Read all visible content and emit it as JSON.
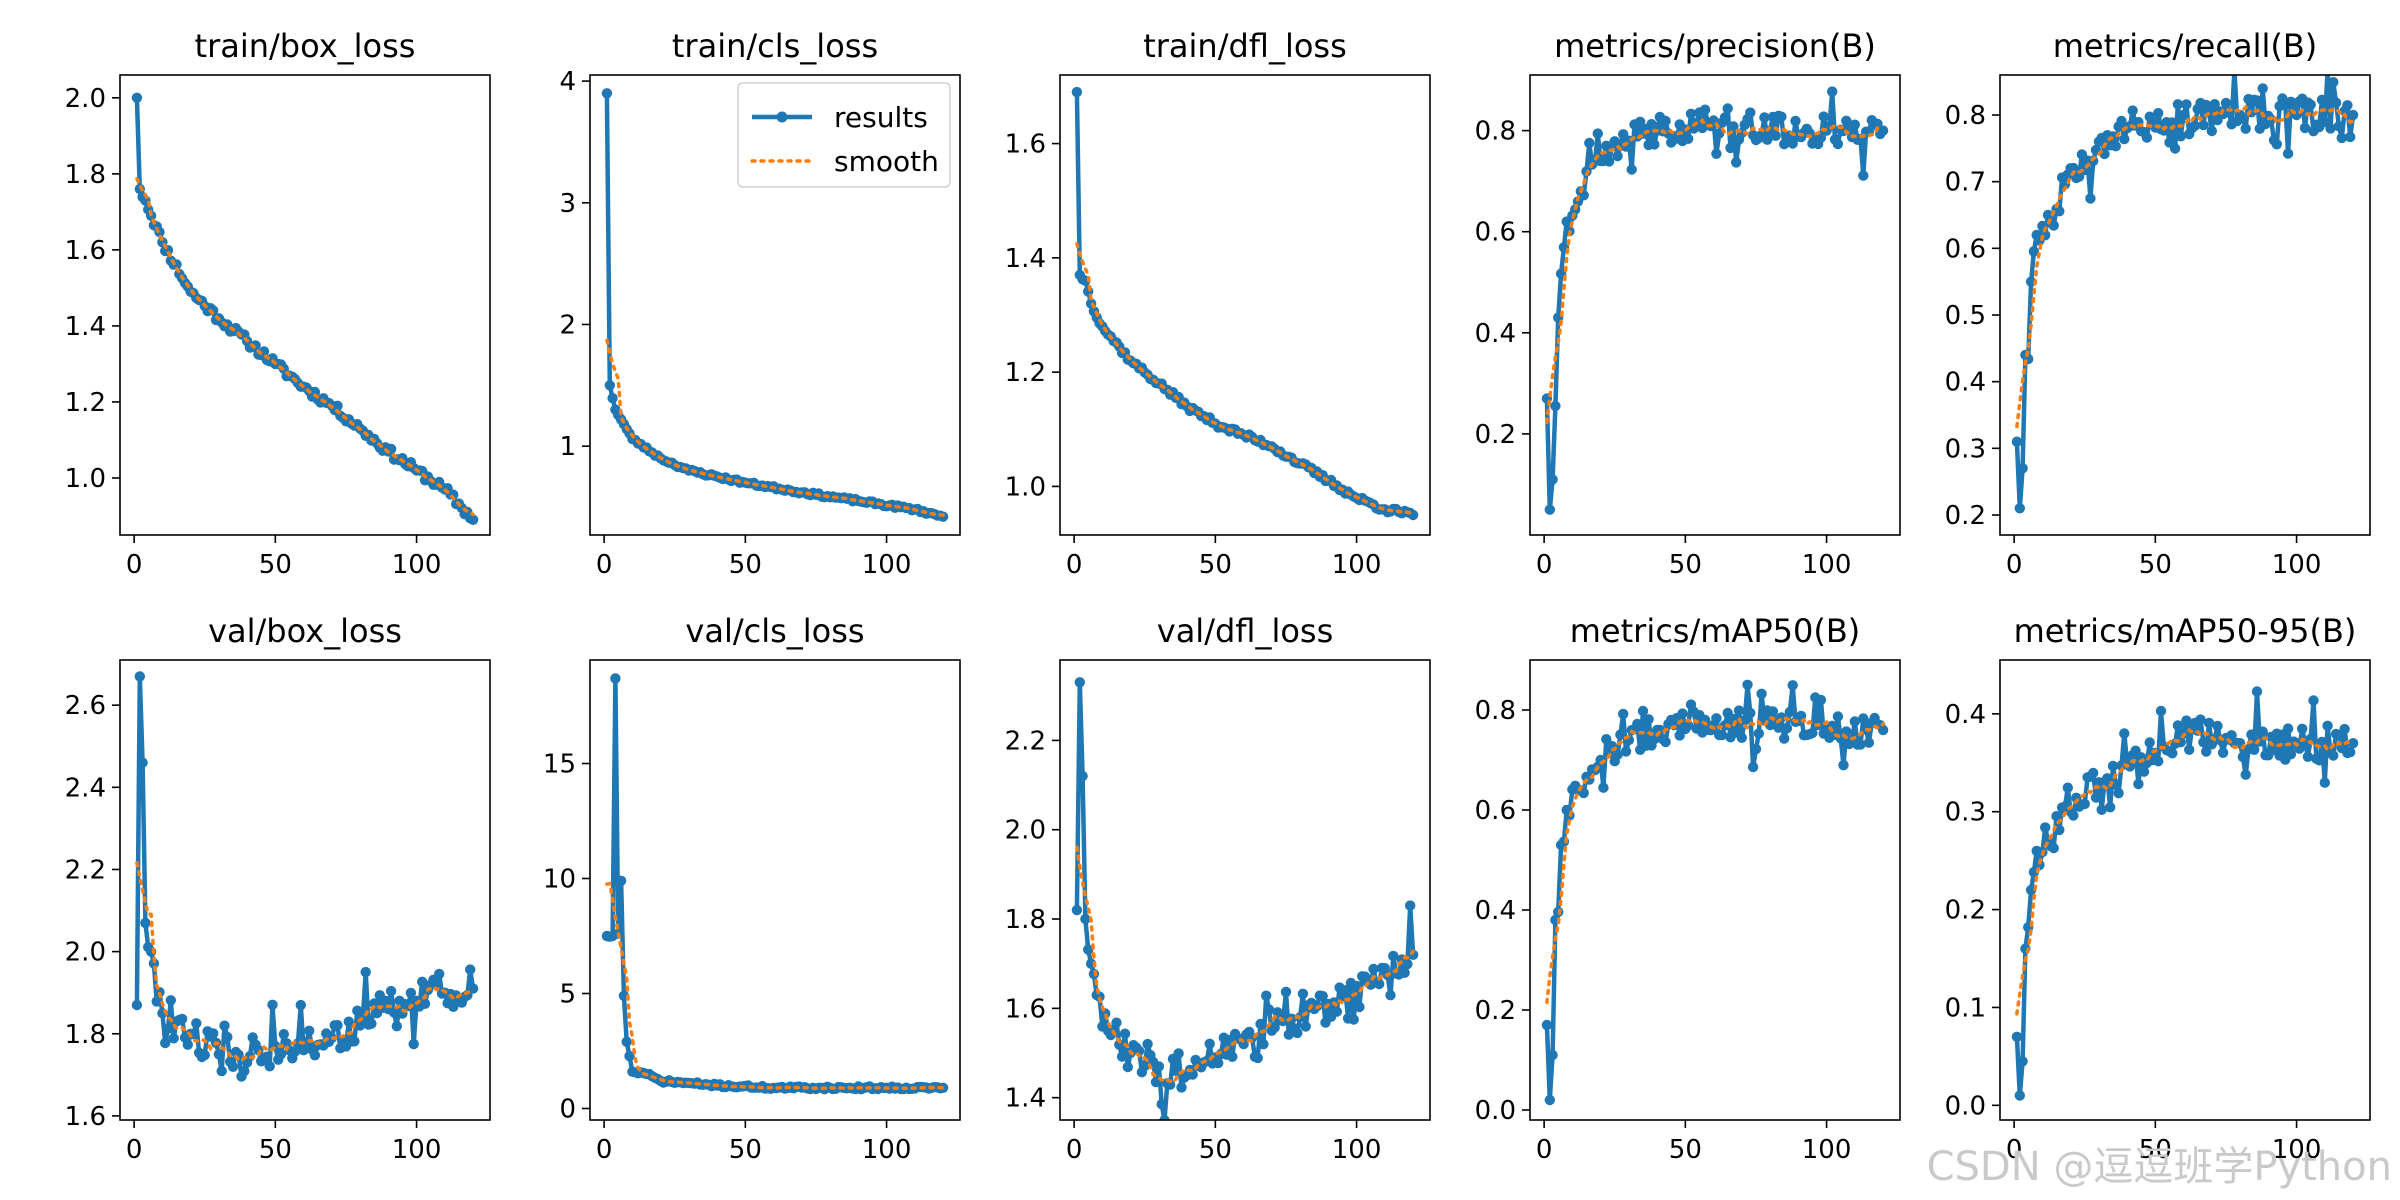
{
  "colors": {
    "results": "#1f77b4",
    "smooth": "#ff7f0e",
    "axes": "#000000",
    "background": "#ffffff"
  },
  "watermark": "CSDN @逗逗班学Python",
  "legend": {
    "placement": "upper-right",
    "panel": 1,
    "entries": [
      "results",
      "smooth"
    ]
  },
  "chart_data": [
    {
      "type": "line",
      "title": "train/box_loss",
      "xlim": [
        -5,
        126
      ],
      "ylim": [
        0.85,
        2.06
      ],
      "xticks": [
        0,
        50,
        100
      ],
      "yticks": [
        1.0,
        1.2,
        1.4,
        1.6,
        1.8,
        2.0
      ],
      "ytick_fmt": 1,
      "key_x": [
        1,
        2,
        4,
        10,
        20,
        30,
        40,
        50,
        60,
        70,
        80,
        90,
        100,
        110,
        120
      ],
      "key_y": [
        2.0,
        1.76,
        1.73,
        1.62,
        1.49,
        1.42,
        1.36,
        1.3,
        1.24,
        1.19,
        1.13,
        1.07,
        1.02,
        0.97,
        0.89
      ],
      "noise": 0.012,
      "spike": 0.0,
      "seed": 11
    },
    {
      "type": "line",
      "title": "train/cls_loss",
      "xlim": [
        -5,
        126
      ],
      "ylim": [
        0.27,
        4.05
      ],
      "xticks": [
        0,
        50,
        100
      ],
      "yticks": [
        1,
        2,
        3,
        4
      ],
      "ytick_fmt": 0,
      "key_x": [
        1,
        2,
        4,
        6,
        10,
        20,
        30,
        50,
        70,
        90,
        110,
        120
      ],
      "key_y": [
        3.9,
        1.5,
        1.3,
        1.22,
        1.06,
        0.9,
        0.8,
        0.7,
        0.62,
        0.55,
        0.48,
        0.42
      ],
      "noise": 0.012,
      "spike": 0.0,
      "seed": 23
    },
    {
      "type": "line",
      "title": "train/dfl_loss",
      "xlim": [
        -5,
        126
      ],
      "ylim": [
        0.915,
        1.72
      ],
      "xticks": [
        0,
        50,
        100
      ],
      "yticks": [
        1.0,
        1.2,
        1.4,
        1.6
      ],
      "ytick_fmt": 1,
      "key_x": [
        1,
        2,
        4,
        6,
        10,
        20,
        30,
        40,
        50,
        60,
        70,
        80,
        90,
        100,
        110,
        120
      ],
      "key_y": [
        1.69,
        1.37,
        1.36,
        1.32,
        1.28,
        1.22,
        1.18,
        1.14,
        1.11,
        1.09,
        1.07,
        1.04,
        1.01,
        0.98,
        0.96,
        0.95
      ],
      "noise": 0.005,
      "spike": 0.0,
      "seed": 37
    },
    {
      "type": "line",
      "title": "metrics/precision(B)",
      "xlim": [
        -5,
        126
      ],
      "ylim": [
        0.0,
        0.91
      ],
      "xticks": [
        0,
        50,
        100
      ],
      "yticks": [
        0.2,
        0.4,
        0.6,
        0.8
      ],
      "ytick_fmt": 1,
      "key_x": [
        1,
        2,
        3,
        5,
        8,
        12,
        20,
        30,
        40,
        60,
        80,
        100,
        120
      ],
      "key_y": [
        0.27,
        0.05,
        0.11,
        0.43,
        0.62,
        0.66,
        0.74,
        0.78,
        0.8,
        0.82,
        0.8,
        0.8,
        0.8
      ],
      "noise": 0.03,
      "spike": 0.07,
      "seed": 41
    },
    {
      "type": "line",
      "title": "metrics/recall(B)",
      "xlim": [
        -5,
        126
      ],
      "ylim": [
        0.17,
        0.86
      ],
      "xticks": [
        0,
        50,
        100
      ],
      "yticks": [
        0.2,
        0.3,
        0.4,
        0.5,
        0.6,
        0.7,
        0.8
      ],
      "ytick_fmt": 1,
      "key_x": [
        1,
        2,
        3,
        4,
        6,
        8,
        12,
        20,
        30,
        40,
        60,
        80,
        100,
        120
      ],
      "key_y": [
        0.31,
        0.21,
        0.27,
        0.44,
        0.55,
        0.62,
        0.65,
        0.72,
        0.76,
        0.78,
        0.8,
        0.8,
        0.8,
        0.8
      ],
      "noise": 0.025,
      "spike": 0.05,
      "seed": 53
    },
    {
      "type": "line",
      "title": "val/box_loss",
      "xlim": [
        -5,
        126
      ],
      "ylim": [
        1.59,
        2.71
      ],
      "xticks": [
        0,
        50,
        100
      ],
      "yticks": [
        1.6,
        1.8,
        2.0,
        2.2,
        2.4,
        2.6
      ],
      "ytick_fmt": 1,
      "key_x": [
        1,
        2,
        3,
        4,
        6,
        10,
        15,
        20,
        30,
        40,
        50,
        60,
        70,
        80,
        90,
        100,
        110,
        120
      ],
      "key_y": [
        1.87,
        2.67,
        2.46,
        2.07,
        2.0,
        1.85,
        1.83,
        1.8,
        1.75,
        1.73,
        1.77,
        1.76,
        1.79,
        1.82,
        1.86,
        1.88,
        1.9,
        1.91
      ],
      "noise": 0.05,
      "spike": 0.08,
      "seed": 61
    },
    {
      "type": "line",
      "title": "val/cls_loss",
      "xlim": [
        -5,
        126
      ],
      "ylim": [
        -0.5,
        19.5
      ],
      "xticks": [
        0,
        50,
        100
      ],
      "yticks": [
        0,
        5,
        10,
        15
      ],
      "ytick_fmt": 0,
      "key_x": [
        1,
        3,
        4,
        5,
        6,
        7,
        8,
        10,
        15,
        20,
        40,
        60,
        80,
        100,
        120
      ],
      "key_y": [
        7.5,
        7.5,
        18.7,
        7.6,
        9.9,
        4.9,
        2.9,
        1.6,
        1.5,
        1.2,
        1.0,
        0.9,
        0.9,
        0.9,
        0.9
      ],
      "noise": 0.06,
      "spike": 0.0,
      "seed": 71
    },
    {
      "type": "line",
      "title": "val/dfl_loss",
      "xlim": [
        -5,
        126
      ],
      "ylim": [
        1.35,
        2.38
      ],
      "xticks": [
        0,
        50,
        100
      ],
      "yticks": [
        1.4,
        1.6,
        1.8,
        2.0,
        2.2
      ],
      "ytick_fmt": 1,
      "key_x": [
        1,
        2,
        3,
        4,
        6,
        8,
        12,
        20,
        30,
        40,
        50,
        60,
        70,
        80,
        90,
        100,
        110,
        120
      ],
      "key_y": [
        1.82,
        2.33,
        2.12,
        1.8,
        1.7,
        1.63,
        1.55,
        1.5,
        1.47,
        1.45,
        1.49,
        1.52,
        1.55,
        1.58,
        1.61,
        1.65,
        1.69,
        1.72
      ],
      "noise": 0.04,
      "spike": 0.07,
      "seed": 83
    },
    {
      "type": "line",
      "title": "metrics/mAP50(B)",
      "xlim": [
        -5,
        126
      ],
      "ylim": [
        -0.02,
        0.9
      ],
      "xticks": [
        0,
        50,
        100
      ],
      "yticks": [
        0.0,
        0.2,
        0.4,
        0.6,
        0.8
      ],
      "ytick_fmt": 1,
      "key_x": [
        1,
        2,
        3,
        4,
        6,
        8,
        12,
        20,
        30,
        40,
        60,
        80,
        100,
        120
      ],
      "key_y": [
        0.17,
        0.02,
        0.11,
        0.38,
        0.53,
        0.6,
        0.64,
        0.7,
        0.74,
        0.76,
        0.77,
        0.77,
        0.76,
        0.76
      ],
      "noise": 0.03,
      "spike": 0.06,
      "seed": 97
    },
    {
      "type": "line",
      "title": "metrics/mAP50-95(B)",
      "xlim": [
        -5,
        126
      ],
      "ylim": [
        -0.015,
        0.455
      ],
      "xticks": [
        0,
        50,
        100
      ],
      "yticks": [
        0.0,
        0.1,
        0.2,
        0.3,
        0.4
      ],
      "ytick_fmt": 1,
      "key_x": [
        1,
        2,
        3,
        4,
        6,
        8,
        12,
        20,
        30,
        40,
        50,
        60,
        80,
        100,
        120
      ],
      "key_y": [
        0.07,
        0.01,
        0.045,
        0.16,
        0.22,
        0.26,
        0.27,
        0.3,
        0.33,
        0.35,
        0.36,
        0.38,
        0.37,
        0.37,
        0.37
      ],
      "noise": 0.018,
      "spike": 0.035,
      "seed": 109
    }
  ]
}
